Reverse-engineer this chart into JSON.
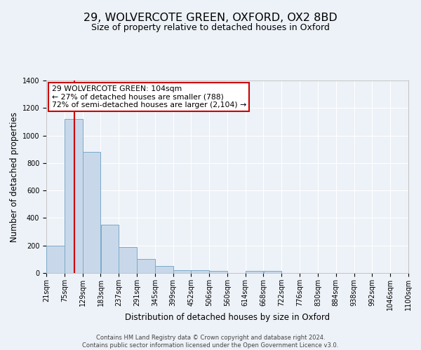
{
  "title": "29, WOLVERCOTE GREEN, OXFORD, OX2 8BD",
  "subtitle": "Size of property relative to detached houses in Oxford",
  "xlabel": "Distribution of detached houses by size in Oxford",
  "ylabel": "Number of detached properties",
  "bin_edges": [
    21,
    75,
    129,
    183,
    237,
    291,
    345,
    399,
    452,
    506,
    560,
    614,
    668,
    722,
    776,
    830,
    884,
    938,
    992,
    1046,
    1100
  ],
  "bar_heights": [
    200,
    1120,
    880,
    350,
    190,
    100,
    50,
    20,
    20,
    15,
    0,
    15,
    15,
    0,
    0,
    0,
    0,
    0,
    0,
    0
  ],
  "bar_color": "#c8d8ea",
  "bar_edge_color": "#7aaac8",
  "property_line_x": 104,
  "property_line_color": "#cc0000",
  "ylim": [
    0,
    1400
  ],
  "yticks": [
    0,
    200,
    400,
    600,
    800,
    1000,
    1200,
    1400
  ],
  "annotation_box_text": "29 WOLVERCOTE GREEN: 104sqm\n← 27% of detached houses are smaller (788)\n72% of semi-detached houses are larger (2,104) →",
  "title_fontsize": 11.5,
  "subtitle_fontsize": 9,
  "axis_label_fontsize": 8.5,
  "tick_fontsize": 7,
  "annotation_fontsize": 7.8,
  "footer_text": "Contains HM Land Registry data © Crown copyright and database right 2024.\nContains public sector information licensed under the Open Government Licence v3.0.",
  "footer_fontsize": 6,
  "background_color": "#edf2f8",
  "grid_color": "#ffffff"
}
